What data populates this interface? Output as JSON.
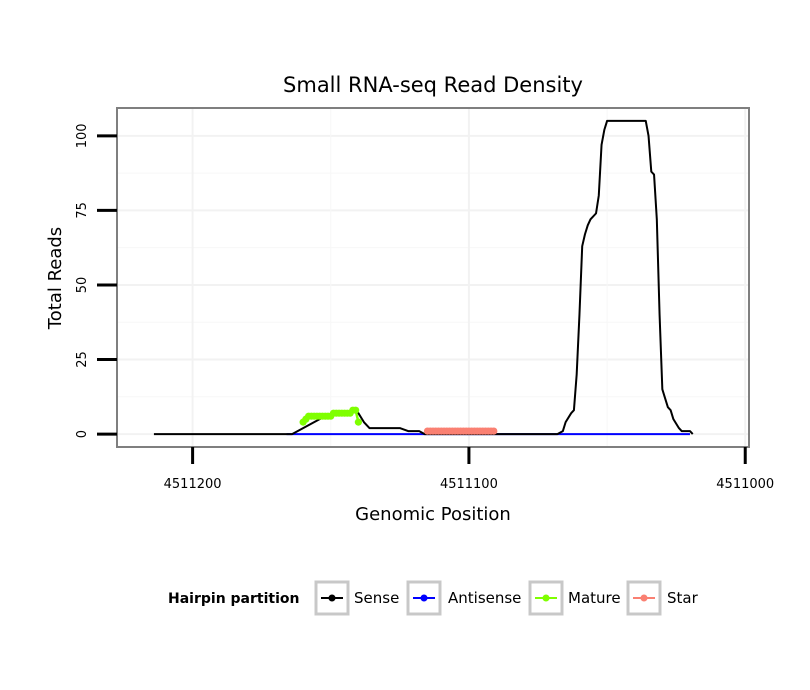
{
  "chart_data": {
    "type": "line",
    "title": "Small RNA-seq Read Density",
    "xlabel": "Genomic Position",
    "ylabel": "Total Reads",
    "x_reversed": true,
    "xlim": [
      4511227,
      4510999
    ],
    "ylim": [
      -4,
      109
    ],
    "x_ticks": [
      4511200,
      4511100,
      4511000
    ],
    "x_tick_labels": [
      "4511200",
      "4511100",
      "4511000"
    ],
    "y_ticks": [
      0,
      25,
      50,
      75,
      100
    ],
    "y_tick_labels": [
      "0",
      "25",
      "50",
      "75",
      "100"
    ],
    "grid": true,
    "legend": {
      "title": "Hairpin partition",
      "position": "bottom",
      "entries": [
        {
          "label": "Sense",
          "color": "#000000"
        },
        {
          "label": "Antisense",
          "color": "#0000ff"
        },
        {
          "label": "Mature",
          "color": "#7fff00"
        },
        {
          "label": "Star",
          "color": "#fa8072"
        }
      ]
    },
    "series": [
      {
        "name": "Sense",
        "color": "#000000",
        "points": [
          [
            4511214,
            0
          ],
          [
            4511164,
            0
          ],
          [
            4511162,
            1
          ],
          [
            4511160,
            2
          ],
          [
            4511158,
            3
          ],
          [
            4511156,
            4
          ],
          [
            4511154,
            5
          ],
          [
            4511152,
            6
          ],
          [
            4511150,
            6
          ],
          [
            4511148,
            7
          ],
          [
            4511146,
            7
          ],
          [
            4511144,
            7
          ],
          [
            4511142,
            8
          ],
          [
            4511140,
            7
          ],
          [
            4511138,
            4
          ],
          [
            4511136,
            2
          ],
          [
            4511125,
            2
          ],
          [
            4511122,
            1
          ],
          [
            4511118,
            1
          ],
          [
            4511116,
            0
          ],
          [
            4511068,
            0
          ],
          [
            4511066,
            1
          ],
          [
            4511065,
            4
          ],
          [
            4511063,
            7
          ],
          [
            4511062,
            8
          ],
          [
            4511061,
            20
          ],
          [
            4511060,
            40
          ],
          [
            4511059,
            63
          ],
          [
            4511058,
            67
          ],
          [
            4511057,
            70
          ],
          [
            4511056,
            72
          ],
          [
            4511054,
            74
          ],
          [
            4511053,
            80
          ],
          [
            4511052,
            97
          ],
          [
            4511051,
            102
          ],
          [
            4511050,
            105
          ],
          [
            4511036,
            105
          ],
          [
            4511035,
            100
          ],
          [
            4511034,
            88
          ],
          [
            4511033,
            87
          ],
          [
            4511032,
            72
          ],
          [
            4511031,
            40
          ],
          [
            4511030,
            15
          ],
          [
            4511029,
            12
          ],
          [
            4511028,
            9
          ],
          [
            4511027,
            8
          ],
          [
            4511026,
            5
          ],
          [
            4511024,
            2
          ],
          [
            4511023,
            1
          ],
          [
            4511020,
            1
          ],
          [
            4511019,
            0
          ]
        ]
      },
      {
        "name": "Antisense",
        "color": "#0000ff",
        "points": [
          [
            4511166,
            0
          ],
          [
            4511020,
            0
          ]
        ]
      },
      {
        "name": "Mature",
        "color": "#7fff00",
        "points": [
          [
            4511160,
            4
          ],
          [
            4511159,
            5
          ],
          [
            4511158,
            6
          ],
          [
            4511157,
            6
          ],
          [
            4511156,
            6
          ],
          [
            4511155,
            6
          ],
          [
            4511154,
            6
          ],
          [
            4511153,
            6
          ],
          [
            4511152,
            6
          ],
          [
            4511151,
            6
          ],
          [
            4511150,
            6
          ],
          [
            4511149,
            7
          ],
          [
            4511148,
            7
          ],
          [
            4511147,
            7
          ],
          [
            4511146,
            7
          ],
          [
            4511145,
            7
          ],
          [
            4511144,
            7
          ],
          [
            4511143,
            7
          ],
          [
            4511142,
            8
          ],
          [
            4511141,
            8
          ],
          [
            4511140,
            4
          ]
        ]
      },
      {
        "name": "Star",
        "color": "#fa8072",
        "points": [
          [
            4511115,
            1
          ],
          [
            4511114,
            1
          ],
          [
            4511113,
            1
          ],
          [
            4511112,
            1
          ],
          [
            4511111,
            1
          ],
          [
            4511110,
            1
          ],
          [
            4511109,
            1
          ],
          [
            4511108,
            1
          ],
          [
            4511107,
            1
          ],
          [
            4511106,
            1
          ],
          [
            4511105,
            1
          ],
          [
            4511104,
            1
          ],
          [
            4511103,
            1
          ],
          [
            4511102,
            1
          ],
          [
            4511101,
            1
          ],
          [
            4511100,
            1
          ],
          [
            4511099,
            1
          ],
          [
            4511098,
            1
          ],
          [
            4511097,
            1
          ],
          [
            4511096,
            1
          ],
          [
            4511095,
            1
          ],
          [
            4511094,
            1
          ],
          [
            4511093,
            1
          ],
          [
            4511092,
            1
          ],
          [
            4511091,
            1
          ]
        ]
      }
    ]
  }
}
